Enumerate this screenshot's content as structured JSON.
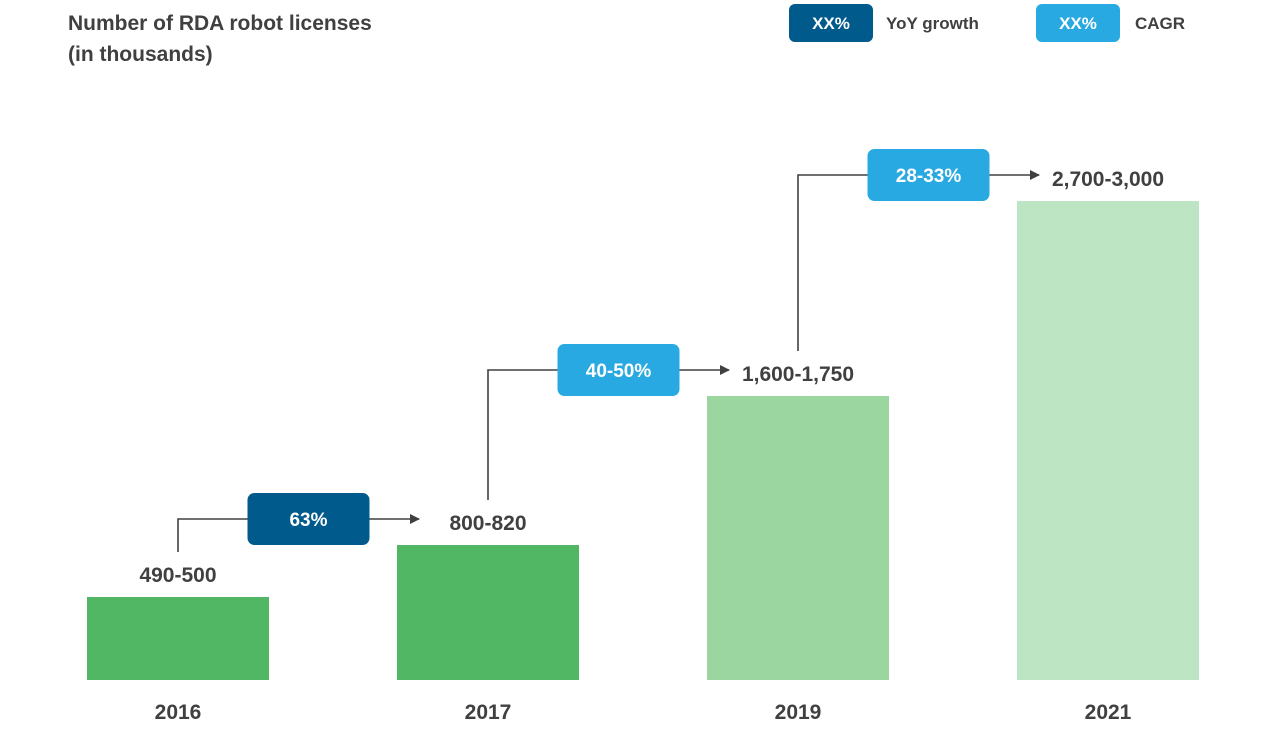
{
  "chart_data": {
    "type": "bar",
    "title_lines": [
      "Number of RDA robot licenses",
      "(in thousands)"
    ],
    "categories": [
      "2016",
      "2017",
      "2019",
      "2021"
    ],
    "value_labels": [
      "490-500",
      "800-820",
      "1,600-1,750",
      "2,700-3,000"
    ],
    "values": [
      495,
      810,
      1675,
      2850
    ],
    "ylim": [
      0,
      3000
    ],
    "grid": false,
    "bar_colors": [
      "#52b765",
      "#52b765",
      "#9bd6a1",
      "#bde5c3"
    ],
    "growth_badges": [
      {
        "from": 0,
        "to": 1,
        "label": "63%",
        "kind": "yoy"
      },
      {
        "from": 1,
        "to": 2,
        "label": "40-50%",
        "kind": "cagr"
      },
      {
        "from": 2,
        "to": 3,
        "label": "28-33%",
        "kind": "cagr"
      }
    ],
    "legend": {
      "placement": "top-right",
      "items": [
        {
          "badge": "XX%",
          "label": "YoY growth",
          "kind": "yoy"
        },
        {
          "badge": "XX%",
          "label": "CAGR",
          "kind": "cagr"
        }
      ]
    },
    "colors": {
      "yoy": "#005a8c",
      "cagr": "#29a9e1",
      "connector": "#404040"
    }
  }
}
